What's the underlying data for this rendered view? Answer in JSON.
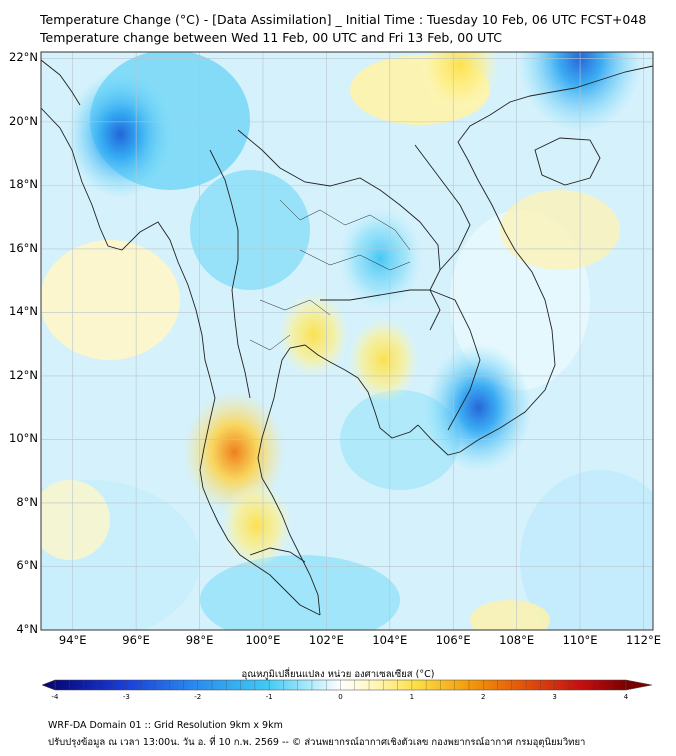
{
  "title": {
    "line1": "Temperature Change (°C) - [Data Assimilation] _ Initial Time : Tuesday 10 Feb, 06 UTC FCST+048",
    "line2": "Temperature change between Wed 11 Feb, 00 UTC and Fri 13 Feb, 00 UTC"
  },
  "map": {
    "lat_labels": [
      "22°N",
      "20°N",
      "18°N",
      "16°N",
      "14°N",
      "12°N",
      "10°N",
      "8°N",
      "6°N",
      "4°N"
    ],
    "lon_labels": [
      "94°E",
      "96°E",
      "98°E",
      "100°E",
      "102°E",
      "104°E",
      "106°E",
      "108°E",
      "110°E",
      "112°E"
    ],
    "lat_range": [
      4,
      22.2
    ],
    "lon_range": [
      93,
      112.3
    ],
    "anomalies": [
      {
        "name": "warm-gulf-thailand",
        "lon": 101.6,
        "lat": 13.3,
        "value": 0.8
      },
      {
        "name": "warm-east-gulf",
        "lon": 103.8,
        "lat": 12.5,
        "value": 0.8
      },
      {
        "name": "warm-peninsula",
        "lon": 99.1,
        "lat": 9.6,
        "value": 1.5
      },
      {
        "name": "warm-south-peninsula",
        "lon": 99.8,
        "lat": 7.3,
        "value": 0.8
      },
      {
        "name": "warm-north",
        "lon": 106.2,
        "lat": 21.8,
        "value": 1.0
      },
      {
        "name": "cold-myanmar",
        "lon": 95.5,
        "lat": 19.6,
        "value": -1.6
      },
      {
        "name": "cold-isan",
        "lon": 103.7,
        "lat": 15.7,
        "value": -1.1
      },
      {
        "name": "cold-cambodia",
        "lon": 106.8,
        "lat": 11.0,
        "value": -1.6
      },
      {
        "name": "cold-hainan-north",
        "lon": 110.0,
        "lat": 22.0,
        "value": -2.0
      }
    ]
  },
  "colorbar": {
    "title": "อุณหภูมิเปลี่ยนแปลง หน่วย องศาเซลเซียส (°C)",
    "min": -4,
    "max": 4,
    "ticks": [
      "-4",
      "-3",
      "-2",
      "-1",
      "0",
      "1",
      "2",
      "3",
      "4"
    ],
    "colors": [
      "#08087a",
      "#1a3cd8",
      "#2a8ef0",
      "#3ec9f5",
      "#b3ecfb",
      "#ffffff",
      "#fff7b8",
      "#fde047",
      "#f59e0b",
      "#e2530a",
      "#c70f10",
      "#7a0000"
    ]
  },
  "footer": {
    "line1": "WRF-DA Domain 01 :: Grid Resolution 9km x 9km",
    "line2": "ปรับปรุงข้อมูล ณ เวลา 13:00น. วัน อ. ที่ 10 ก.พ. 2569 -- © ส่วนพยากรณ์อากาศเชิงตัวเลข กองพยากรณ์อากาศ กรมอุตุนิยมวิทยา"
  }
}
